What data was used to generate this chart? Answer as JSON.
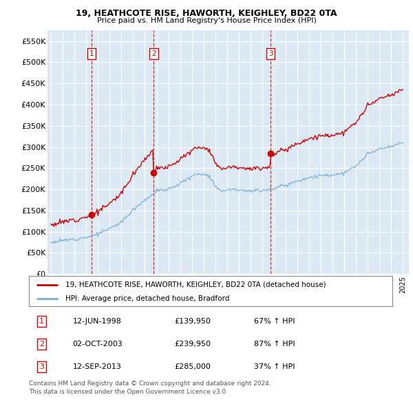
{
  "title1": "19, HEATHCOTE RISE, HAWORTH, KEIGHLEY, BD22 0TA",
  "title2": "Price paid vs. HM Land Registry's House Price Index (HPI)",
  "ylim": [
    0,
    575000
  ],
  "yticks": [
    0,
    50000,
    100000,
    150000,
    200000,
    250000,
    300000,
    350000,
    400000,
    450000,
    500000,
    550000
  ],
  "ytick_labels": [
    "£0",
    "£50K",
    "£100K",
    "£150K",
    "£200K",
    "£250K",
    "£300K",
    "£350K",
    "£400K",
    "£450K",
    "£500K",
    "£550K"
  ],
  "sale_year_floats": [
    1998.458,
    2003.75,
    2013.708
  ],
  "sale_prices": [
    139950,
    239950,
    285000
  ],
  "sale_labels": [
    "1",
    "2",
    "3"
  ],
  "legend_line1": "19, HEATHCOTE RISE, HAWORTH, KEIGHLEY, BD22 0TA (detached house)",
  "legend_line2": "HPI: Average price, detached house, Bradford",
  "footer1": "Contains HM Land Registry data © Crown copyright and database right 2024.",
  "footer2": "This data is licensed under the Open Government Licence v3.0.",
  "line_color_red": "#cc0000",
  "line_color_blue": "#7bafd4",
  "chart_bg": "#dce9f5",
  "grid_color": "#ffffff",
  "rows": [
    [
      "1",
      "12-JUN-1998",
      "£139,950",
      "67% ↑ HPI"
    ],
    [
      "2",
      "02-OCT-2003",
      "£239,950",
      "87% ↑ HPI"
    ],
    [
      "3",
      "12-SEP-2013",
      "£285,000",
      "37% ↑ HPI"
    ]
  ]
}
